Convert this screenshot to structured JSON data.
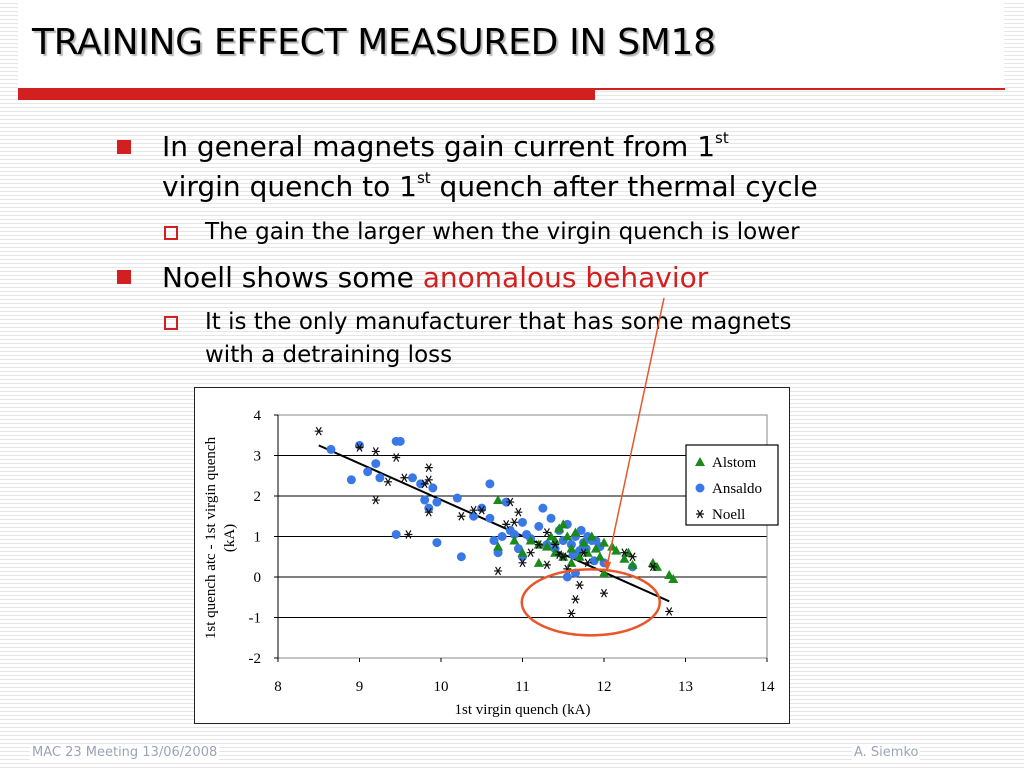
{
  "slide": {
    "title": "TRAINING EFFECT MEASURED IN SM18",
    "bullets": [
      {
        "line1_pre": "In general magnets gain current from 1",
        "line1_sup": "st",
        "line2_pre": "virgin quench to 1",
        "line2_sup": "st",
        "line2_post": " quench after thermal cycle"
      },
      {
        "text_pre": "Noell shows some ",
        "text_highlight": "anomalous behavior"
      }
    ],
    "sub_bullets": [
      {
        "text": "The gain the larger when the virgin quench is lower"
      },
      {
        "line1": "It is the only manufacturer that has some magnets",
        "line2": "with a detraining loss"
      }
    ],
    "colors": {
      "accent": "#d21f1f",
      "annotation": "#e8562a",
      "footer": "#9aa4b8"
    }
  },
  "footer": {
    "left": "MAC 23 Meeting 13/06/2008",
    "right": "A. Siemko"
  },
  "chart_data": {
    "type": "scatter",
    "xlabel": "1st virgin quench (kA)",
    "ylabel_line1": "1st quench atc - 1st virgin quench",
    "ylabel_line2": "(kA)",
    "xlim": [
      8,
      14
    ],
    "ylim": [
      -2,
      4
    ],
    "x_ticks": [
      "8",
      "9",
      "10",
      "11",
      "12",
      "13",
      "14"
    ],
    "y_ticks": [
      "4",
      "3",
      "2",
      "1",
      "0",
      "-1",
      "-2"
    ],
    "grid": "horizontal",
    "legend_position": "right",
    "trend_line": {
      "x": [
        8.5,
        12.8
      ],
      "y": [
        3.25,
        -0.6
      ]
    },
    "annotation": "ellipse around the Noell points with negative gain, arrow from bullet text",
    "series": [
      {
        "name": "Alstom",
        "marker": "triangle",
        "color": "#1a8a1a",
        "points": [
          [
            10.7,
            1.9
          ],
          [
            10.9,
            0.9
          ],
          [
            10.7,
            0.75
          ],
          [
            11.0,
            0.6
          ],
          [
            11.1,
            0.9
          ],
          [
            11.2,
            0.35
          ],
          [
            11.2,
            0.8
          ],
          [
            11.3,
            0.75
          ],
          [
            11.35,
            1.0
          ],
          [
            11.4,
            0.6
          ],
          [
            11.45,
            1.2
          ],
          [
            11.5,
            1.3
          ],
          [
            11.55,
            1.0
          ],
          [
            11.6,
            0.7
          ],
          [
            11.65,
            1.1
          ],
          [
            11.7,
            0.5
          ],
          [
            11.75,
            0.85
          ],
          [
            11.8,
            0.6
          ],
          [
            11.85,
            1.0
          ],
          [
            11.9,
            0.7
          ],
          [
            11.95,
            0.5
          ],
          [
            12.0,
            0.1
          ],
          [
            12.0,
            0.85
          ],
          [
            12.1,
            0.75
          ],
          [
            12.15,
            0.65
          ],
          [
            12.25,
            0.45
          ],
          [
            12.3,
            0.6
          ],
          [
            12.35,
            0.3
          ],
          [
            12.6,
            0.35
          ],
          [
            12.65,
            0.25
          ],
          [
            12.8,
            0.05
          ],
          [
            12.85,
            -0.05
          ],
          [
            11.5,
            0.5
          ],
          [
            11.6,
            0.35
          ],
          [
            11.4,
            0.9
          ]
        ]
      },
      {
        "name": "Ansaldo",
        "marker": "circle",
        "color": "#3a78e8",
        "points": [
          [
            8.65,
            3.15
          ],
          [
            8.9,
            2.4
          ],
          [
            9.0,
            3.25
          ],
          [
            9.1,
            2.6
          ],
          [
            9.2,
            2.8
          ],
          [
            9.25,
            2.45
          ],
          [
            9.45,
            3.35
          ],
          [
            9.5,
            3.35
          ],
          [
            9.45,
            1.05
          ],
          [
            9.65,
            2.45
          ],
          [
            9.75,
            2.3
          ],
          [
            9.8,
            1.9
          ],
          [
            9.85,
            1.7
          ],
          [
            9.9,
            2.2
          ],
          [
            9.95,
            1.85
          ],
          [
            9.95,
            0.85
          ],
          [
            10.2,
            1.95
          ],
          [
            10.25,
            0.5
          ],
          [
            10.4,
            1.5
          ],
          [
            10.5,
            1.7
          ],
          [
            10.6,
            1.45
          ],
          [
            10.6,
            2.3
          ],
          [
            10.7,
            0.6
          ],
          [
            10.75,
            1.0
          ],
          [
            10.8,
            1.85
          ],
          [
            10.85,
            1.15
          ],
          [
            10.9,
            1.05
          ],
          [
            10.95,
            0.7
          ],
          [
            11.0,
            1.35
          ],
          [
            11.05,
            1.05
          ],
          [
            11.1,
            0.95
          ],
          [
            11.2,
            1.25
          ],
          [
            11.25,
            1.7
          ],
          [
            11.3,
            0.8
          ],
          [
            11.35,
            1.45
          ],
          [
            11.4,
            0.7
          ],
          [
            11.45,
            1.15
          ],
          [
            11.5,
            0.9
          ],
          [
            11.55,
            1.3
          ],
          [
            11.6,
            0.8
          ],
          [
            11.62,
            0.55
          ],
          [
            11.65,
            1.0
          ],
          [
            11.7,
            0.65
          ],
          [
            11.72,
            1.15
          ],
          [
            11.75,
            0.85
          ],
          [
            11.78,
            0.7
          ],
          [
            11.8,
            1.0
          ],
          [
            11.85,
            0.9
          ],
          [
            11.88,
            0.4
          ],
          [
            11.9,
            0.9
          ],
          [
            11.95,
            0.75
          ],
          [
            11.55,
            0.0
          ],
          [
            11.65,
            0.1
          ],
          [
            12.0,
            0.35
          ],
          [
            12.35,
            0.25
          ],
          [
            10.65,
            0.9
          ],
          [
            11.0,
            0.5
          ]
        ]
      },
      {
        "name": "Noell",
        "marker": "star",
        "color": "#111111",
        "points": [
          [
            8.5,
            3.6
          ],
          [
            9.0,
            3.2
          ],
          [
            9.2,
            3.1
          ],
          [
            9.2,
            1.9
          ],
          [
            9.35,
            2.35
          ],
          [
            9.45,
            2.95
          ],
          [
            9.55,
            2.45
          ],
          [
            9.6,
            1.05
          ],
          [
            9.8,
            2.3
          ],
          [
            9.85,
            2.7
          ],
          [
            9.85,
            2.4
          ],
          [
            9.85,
            1.6
          ],
          [
            10.25,
            1.5
          ],
          [
            10.4,
            1.65
          ],
          [
            10.5,
            1.65
          ],
          [
            10.7,
            0.15
          ],
          [
            10.8,
            1.3
          ],
          [
            10.85,
            1.85
          ],
          [
            10.9,
            1.35
          ],
          [
            10.95,
            1.6
          ],
          [
            11.0,
            0.35
          ],
          [
            11.1,
            0.6
          ],
          [
            11.2,
            0.8
          ],
          [
            11.3,
            0.3
          ],
          [
            11.4,
            0.8
          ],
          [
            11.45,
            0.55
          ],
          [
            11.5,
            0.5
          ],
          [
            11.55,
            0.2
          ],
          [
            11.6,
            -0.9
          ],
          [
            11.65,
            -0.55
          ],
          [
            11.7,
            -0.2
          ],
          [
            11.75,
            0.6
          ],
          [
            11.8,
            0.35
          ],
          [
            12.0,
            -0.4
          ],
          [
            12.25,
            0.6
          ],
          [
            12.35,
            0.5
          ],
          [
            12.6,
            0.25
          ],
          [
            12.8,
            -0.85
          ],
          [
            11.3,
            1.1
          ]
        ]
      }
    ]
  }
}
